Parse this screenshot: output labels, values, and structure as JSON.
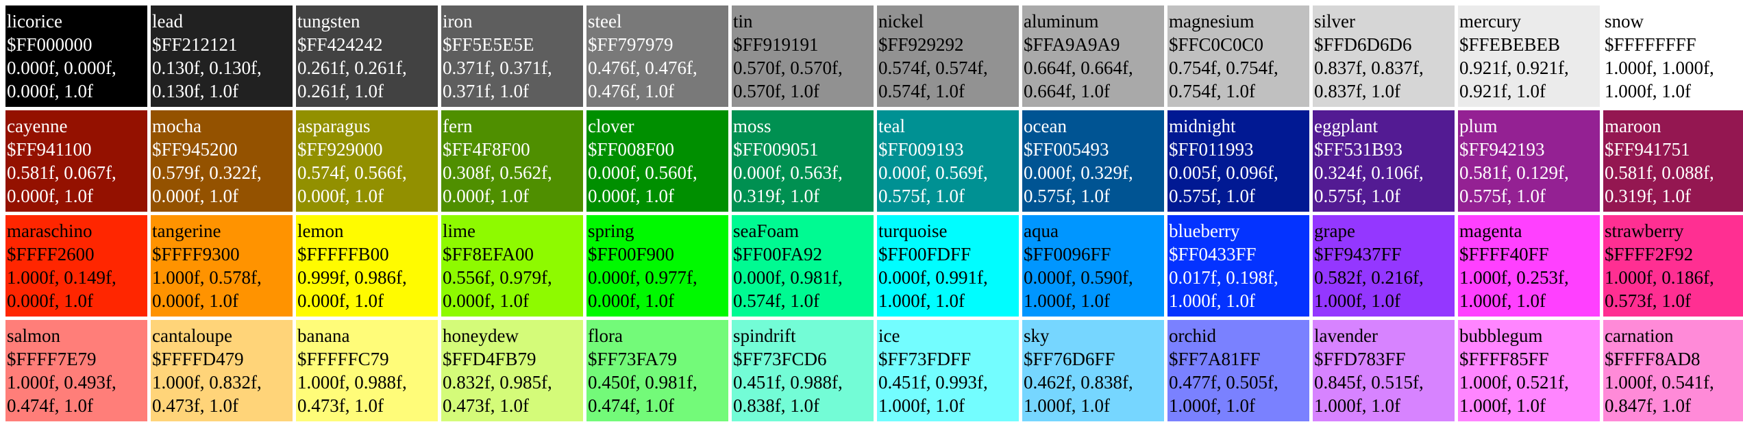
{
  "colors": [
    {
      "name": "licorice",
      "hex": "$FF000000",
      "rgb": "0.000f, 0.000f,",
      "rgb2": "0.000f, 1.0f",
      "bg": "#000000",
      "fg": "#ffffff"
    },
    {
      "name": "lead",
      "hex": "$FF212121",
      "rgb": "0.130f, 0.130f,",
      "rgb2": "0.130f, 1.0f",
      "bg": "#212121",
      "fg": "#ffffff"
    },
    {
      "name": "tungsten",
      "hex": "$FF424242",
      "rgb": "0.261f, 0.261f,",
      "rgb2": "0.261f, 1.0f",
      "bg": "#424242",
      "fg": "#ffffff"
    },
    {
      "name": "iron",
      "hex": "$FF5E5E5E",
      "rgb": "0.371f, 0.371f,",
      "rgb2": "0.371f, 1.0f",
      "bg": "#5E5E5E",
      "fg": "#ffffff"
    },
    {
      "name": "steel",
      "hex": "$FF797979",
      "rgb": "0.476f, 0.476f,",
      "rgb2": "0.476f, 1.0f",
      "bg": "#797979",
      "fg": "#ffffff"
    },
    {
      "name": "tin",
      "hex": "$FF919191",
      "rgb": "0.570f, 0.570f,",
      "rgb2": "0.570f, 1.0f",
      "bg": "#919191",
      "fg": "#000000"
    },
    {
      "name": "nickel",
      "hex": "$FF929292",
      "rgb": "0.574f, 0.574f,",
      "rgb2": "0.574f, 1.0f",
      "bg": "#929292",
      "fg": "#000000"
    },
    {
      "name": "aluminum",
      "hex": "$FFA9A9A9",
      "rgb": "0.664f, 0.664f,",
      "rgb2": "0.664f, 1.0f",
      "bg": "#A9A9A9",
      "fg": "#000000"
    },
    {
      "name": "magnesium",
      "hex": "$FFC0C0C0",
      "rgb": "0.754f, 0.754f,",
      "rgb2": "0.754f, 1.0f",
      "bg": "#C0C0C0",
      "fg": "#000000"
    },
    {
      "name": "silver",
      "hex": "$FFD6D6D6",
      "rgb": "0.837f, 0.837f,",
      "rgb2": "0.837f, 1.0f",
      "bg": "#D6D6D6",
      "fg": "#000000"
    },
    {
      "name": "mercury",
      "hex": "$FFEBEBEB",
      "rgb": "0.921f, 0.921f,",
      "rgb2": "0.921f, 1.0f",
      "bg": "#EBEBEB",
      "fg": "#000000"
    },
    {
      "name": "snow",
      "hex": "$FFFFFFFF",
      "rgb": "1.000f, 1.000f,",
      "rgb2": "1.000f, 1.0f",
      "bg": "#FFFFFF",
      "fg": "#000000"
    },
    {
      "name": "cayenne",
      "hex": "$FF941100",
      "rgb": "0.581f, 0.067f,",
      "rgb2": "0.000f, 1.0f",
      "bg": "#941100",
      "fg": "#ffffff"
    },
    {
      "name": "mocha",
      "hex": "$FF945200",
      "rgb": "0.579f, 0.322f,",
      "rgb2": "0.000f, 1.0f",
      "bg": "#945200",
      "fg": "#ffffff"
    },
    {
      "name": "asparagus",
      "hex": "$FF929000",
      "rgb": "0.574f, 0.566f,",
      "rgb2": "0.000f, 1.0f",
      "bg": "#929000",
      "fg": "#ffffff"
    },
    {
      "name": "fern",
      "hex": "$FF4F8F00",
      "rgb": "0.308f, 0.562f,",
      "rgb2": "0.000f, 1.0f",
      "bg": "#4F8F00",
      "fg": "#ffffff"
    },
    {
      "name": "clover",
      "hex": "$FF008F00",
      "rgb": "0.000f, 0.560f,",
      "rgb2": "0.000f, 1.0f",
      "bg": "#008F00",
      "fg": "#ffffff"
    },
    {
      "name": "moss",
      "hex": "$FF009051",
      "rgb": "0.000f, 0.563f,",
      "rgb2": "0.319f, 1.0f",
      "bg": "#009051",
      "fg": "#ffffff"
    },
    {
      "name": "teal",
      "hex": "$FF009193",
      "rgb": "0.000f, 0.569f,",
      "rgb2": "0.575f, 1.0f",
      "bg": "#009193",
      "fg": "#ffffff"
    },
    {
      "name": "ocean",
      "hex": "$FF005493",
      "rgb": "0.000f, 0.329f,",
      "rgb2": "0.575f, 1.0f",
      "bg": "#005493",
      "fg": "#ffffff"
    },
    {
      "name": "midnight",
      "hex": "$FF011993",
      "rgb": "0.005f, 0.096f,",
      "rgb2": "0.575f, 1.0f",
      "bg": "#011993",
      "fg": "#ffffff"
    },
    {
      "name": "eggplant",
      "hex": "$FF531B93",
      "rgb": "0.324f, 0.106f,",
      "rgb2": "0.575f, 1.0f",
      "bg": "#531B93",
      "fg": "#ffffff"
    },
    {
      "name": "plum",
      "hex": "$FF942193",
      "rgb": "0.581f, 0.129f,",
      "rgb2": "0.575f, 1.0f",
      "bg": "#942193",
      "fg": "#ffffff"
    },
    {
      "name": "maroon",
      "hex": "$FF941751",
      "rgb": "0.581f, 0.088f,",
      "rgb2": "0.319f, 1.0f",
      "bg": "#941751",
      "fg": "#ffffff"
    },
    {
      "name": "maraschino",
      "hex": "$FFFF2600",
      "rgb": "1.000f, 0.149f,",
      "rgb2": "0.000f, 1.0f",
      "bg": "#FF2600",
      "fg": "#000000"
    },
    {
      "name": "tangerine",
      "hex": "$FFFF9300",
      "rgb": "1.000f, 0.578f,",
      "rgb2": "0.000f, 1.0f",
      "bg": "#FF9300",
      "fg": "#000000"
    },
    {
      "name": "lemon",
      "hex": "$FFFFFB00",
      "rgb": "0.999f, 0.986f,",
      "rgb2": "0.000f, 1.0f",
      "bg": "#FFFB00",
      "fg": "#000000"
    },
    {
      "name": "lime",
      "hex": "$FF8EFA00",
      "rgb": "0.556f, 0.979f,",
      "rgb2": "0.000f, 1.0f",
      "bg": "#8EFA00",
      "fg": "#000000"
    },
    {
      "name": "spring",
      "hex": "$FF00F900",
      "rgb": "0.000f, 0.977f,",
      "rgb2": "0.000f, 1.0f",
      "bg": "#00F900",
      "fg": "#000000"
    },
    {
      "name": "seaFoam",
      "hex": "$FF00FA92",
      "rgb": "0.000f, 0.981f,",
      "rgb2": "0.574f, 1.0f",
      "bg": "#00FA92",
      "fg": "#000000"
    },
    {
      "name": "turquoise",
      "hex": "$FF00FDFF",
      "rgb": "0.000f, 0.991f,",
      "rgb2": "1.000f, 1.0f",
      "bg": "#00FDFF",
      "fg": "#000000"
    },
    {
      "name": "aqua",
      "hex": "$FF0096FF",
      "rgb": "0.000f, 0.590f,",
      "rgb2": "1.000f, 1.0f",
      "bg": "#0096FF",
      "fg": "#000000"
    },
    {
      "name": "blueberry",
      "hex": "$FF0433FF",
      "rgb": "0.017f, 0.198f,",
      "rgb2": "1.000f, 1.0f",
      "bg": "#0433FF",
      "fg": "#ffffff"
    },
    {
      "name": "grape",
      "hex": "$FF9437FF",
      "rgb": "0.582f, 0.216f,",
      "rgb2": "1.000f, 1.0f",
      "bg": "#9437FF",
      "fg": "#000000"
    },
    {
      "name": "magenta",
      "hex": "$FFFF40FF",
      "rgb": "1.000f, 0.253f,",
      "rgb2": "1.000f, 1.0f",
      "bg": "#FF40FF",
      "fg": "#000000"
    },
    {
      "name": "strawberry",
      "hex": "$FFFF2F92",
      "rgb": "1.000f, 0.186f,",
      "rgb2": "0.573f, 1.0f",
      "bg": "#FF2F92",
      "fg": "#000000"
    },
    {
      "name": "salmon",
      "hex": "$FFFF7E79",
      "rgb": "1.000f, 0.493f,",
      "rgb2": "0.474f, 1.0f",
      "bg": "#FF7E79",
      "fg": "#000000"
    },
    {
      "name": "cantaloupe",
      "hex": "$FFFFD479",
      "rgb": "1.000f, 0.832f,",
      "rgb2": "0.473f, 1.0f",
      "bg": "#FFD479",
      "fg": "#000000"
    },
    {
      "name": "banana",
      "hex": "$FFFFFC79",
      "rgb": "1.000f, 0.988f,",
      "rgb2": "0.473f, 1.0f",
      "bg": "#FFFC79",
      "fg": "#000000"
    },
    {
      "name": "honeydew",
      "hex": "$FFD4FB79",
      "rgb": "0.832f, 0.985f,",
      "rgb2": "0.473f, 1.0f",
      "bg": "#D4FB79",
      "fg": "#000000"
    },
    {
      "name": "flora",
      "hex": "$FF73FA79",
      "rgb": "0.450f, 0.981f,",
      "rgb2": "0.474f, 1.0f",
      "bg": "#73FA79",
      "fg": "#000000"
    },
    {
      "name": "spindrift",
      "hex": "$FF73FCD6",
      "rgb": "0.451f, 0.988f,",
      "rgb2": "0.838f, 1.0f",
      "bg": "#73FCD6",
      "fg": "#000000"
    },
    {
      "name": "ice",
      "hex": "$FF73FDFF",
      "rgb": "0.451f, 0.993f,",
      "rgb2": "1.000f, 1.0f",
      "bg": "#73FDFF",
      "fg": "#000000"
    },
    {
      "name": "sky",
      "hex": "$FF76D6FF",
      "rgb": "0.462f, 0.838f,",
      "rgb2": "1.000f, 1.0f",
      "bg": "#76D6FF",
      "fg": "#000000"
    },
    {
      "name": "orchid",
      "hex": "$FF7A81FF",
      "rgb": "0.477f, 0.505f,",
      "rgb2": "1.000f, 1.0f",
      "bg": "#7A81FF",
      "fg": "#000000"
    },
    {
      "name": "lavender",
      "hex": "$FFD783FF",
      "rgb": "0.845f, 0.515f,",
      "rgb2": "1.000f, 1.0f",
      "bg": "#D783FF",
      "fg": "#000000"
    },
    {
      "name": "bubblegum",
      "hex": "$FFFF85FF",
      "rgb": "1.000f, 0.521f,",
      "rgb2": "1.000f, 1.0f",
      "bg": "#FF85FF",
      "fg": "#000000"
    },
    {
      "name": "carnation",
      "hex": "$FFFF8AD8",
      "rgb": "1.000f, 0.541f,",
      "rgb2": "0.847f, 1.0f",
      "bg": "#FF8AD8",
      "fg": "#000000"
    }
  ]
}
